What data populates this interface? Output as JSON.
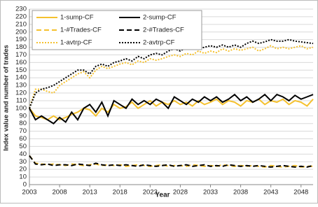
{
  "chart_data": {
    "type": "line",
    "x_label": "Year",
    "y_label": "Index value and number of trades",
    "x": [
      2003,
      2004,
      2005,
      2006,
      2007,
      2008,
      2009,
      2010,
      2011,
      2012,
      2013,
      2014,
      2015,
      2016,
      2017,
      2018,
      2019,
      2020,
      2021,
      2022,
      2023,
      2024,
      2025,
      2026,
      2027,
      2028,
      2029,
      2030,
      2031,
      2032,
      2033,
      2034,
      2035,
      2036,
      2037,
      2038,
      2039,
      2040,
      2041,
      2042,
      2043,
      2044,
      2045,
      2046,
      2047,
      2048,
      2049,
      2050
    ],
    "xlim": [
      2003,
      2050
    ],
    "xticks": [
      2003,
      2008,
      2013,
      2018,
      2023,
      2028,
      2033,
      2038,
      2043,
      2048
    ],
    "ylim": [
      0,
      230
    ],
    "yticks": [
      0,
      10,
      20,
      30,
      40,
      50,
      60,
      70,
      80,
      90,
      100,
      110,
      120,
      130,
      140,
      150,
      160,
      170,
      180,
      190,
      200,
      210,
      220,
      230
    ],
    "grid": true,
    "legend_position": "upper left",
    "series": [
      {
        "name": "1-sump-CF",
        "color": "#f5c12e",
        "style": "solid",
        "values": [
          100,
          90,
          88,
          85,
          90,
          85,
          88,
          92,
          95,
          100,
          98,
          90,
          100,
          95,
          105,
          100,
          102,
          108,
          100,
          105,
          110,
          103,
          108,
          105,
          110,
          105,
          108,
          103,
          110,
          105,
          108,
          112,
          105,
          110,
          108,
          103,
          110,
          108,
          112,
          105,
          110,
          108,
          112,
          105,
          110,
          108,
          103,
          112
        ]
      },
      {
        "name": "2-sump-CF",
        "color": "#000000",
        "style": "solid",
        "values": [
          100,
          85,
          90,
          85,
          80,
          88,
          82,
          95,
          85,
          100,
          105,
          95,
          108,
          90,
          110,
          105,
          100,
          112,
          105,
          110,
          105,
          112,
          108,
          100,
          115,
          110,
          105,
          112,
          108,
          115,
          110,
          115,
          108,
          112,
          118,
          110,
          115,
          108,
          112,
          118,
          110,
          118,
          115,
          110,
          117,
          112,
          115,
          118
        ]
      },
      {
        "name": "1-#Trades-CF",
        "color": "#f5c12e",
        "style": "dashed",
        "values": [
          38,
          28,
          27,
          26,
          27,
          26,
          25,
          27,
          26,
          25,
          26,
          27,
          25,
          26,
          25,
          26,
          24,
          25,
          26,
          25,
          24,
          25,
          26,
          24,
          25,
          25,
          24,
          26,
          25,
          24,
          25,
          24,
          26,
          25,
          24,
          25,
          24,
          25,
          24,
          23,
          25,
          24,
          23,
          24,
          25,
          23,
          24,
          24
        ]
      },
      {
        "name": "2-#Trades-CF",
        "color": "#000000",
        "style": "dashed",
        "values": [
          38,
          27,
          26,
          27,
          25,
          26,
          26,
          25,
          27,
          26,
          25,
          28,
          26,
          25,
          26,
          25,
          26,
          25,
          24,
          26,
          25,
          24,
          25,
          26,
          24,
          25,
          26,
          24,
          25,
          26,
          24,
          25,
          24,
          26,
          25,
          24,
          25,
          24,
          25,
          24,
          23,
          24,
          25,
          24,
          23,
          24,
          23,
          25
        ]
      },
      {
        "name": "1-avtrp-CF",
        "color": "#f5c12e",
        "style": "dotted",
        "values": [
          100,
          125,
          125,
          122,
          120,
          130,
          135,
          140,
          145,
          148,
          140,
          150,
          155,
          152,
          155,
          158,
          160,
          157,
          162,
          160,
          165,
          163,
          165,
          168,
          170,
          168,
          172,
          170,
          175,
          172,
          175,
          173,
          178,
          175,
          178,
          176,
          178,
          180,
          175,
          178,
          182,
          178,
          180,
          178,
          180,
          182,
          178,
          180
        ]
      },
      {
        "name": "2-avtrp-CF",
        "color": "#000000",
        "style": "dotted",
        "values": [
          100,
          120,
          125,
          127,
          130,
          135,
          140,
          145,
          150,
          150,
          145,
          155,
          158,
          155,
          160,
          162,
          165,
          162,
          168,
          165,
          170,
          172,
          170,
          175,
          178,
          175,
          180,
          178,
          178,
          180,
          182,
          180,
          183,
          180,
          183,
          180,
          185,
          188,
          185,
          187,
          190,
          188,
          188,
          190,
          188,
          187,
          186,
          185
        ]
      }
    ]
  }
}
